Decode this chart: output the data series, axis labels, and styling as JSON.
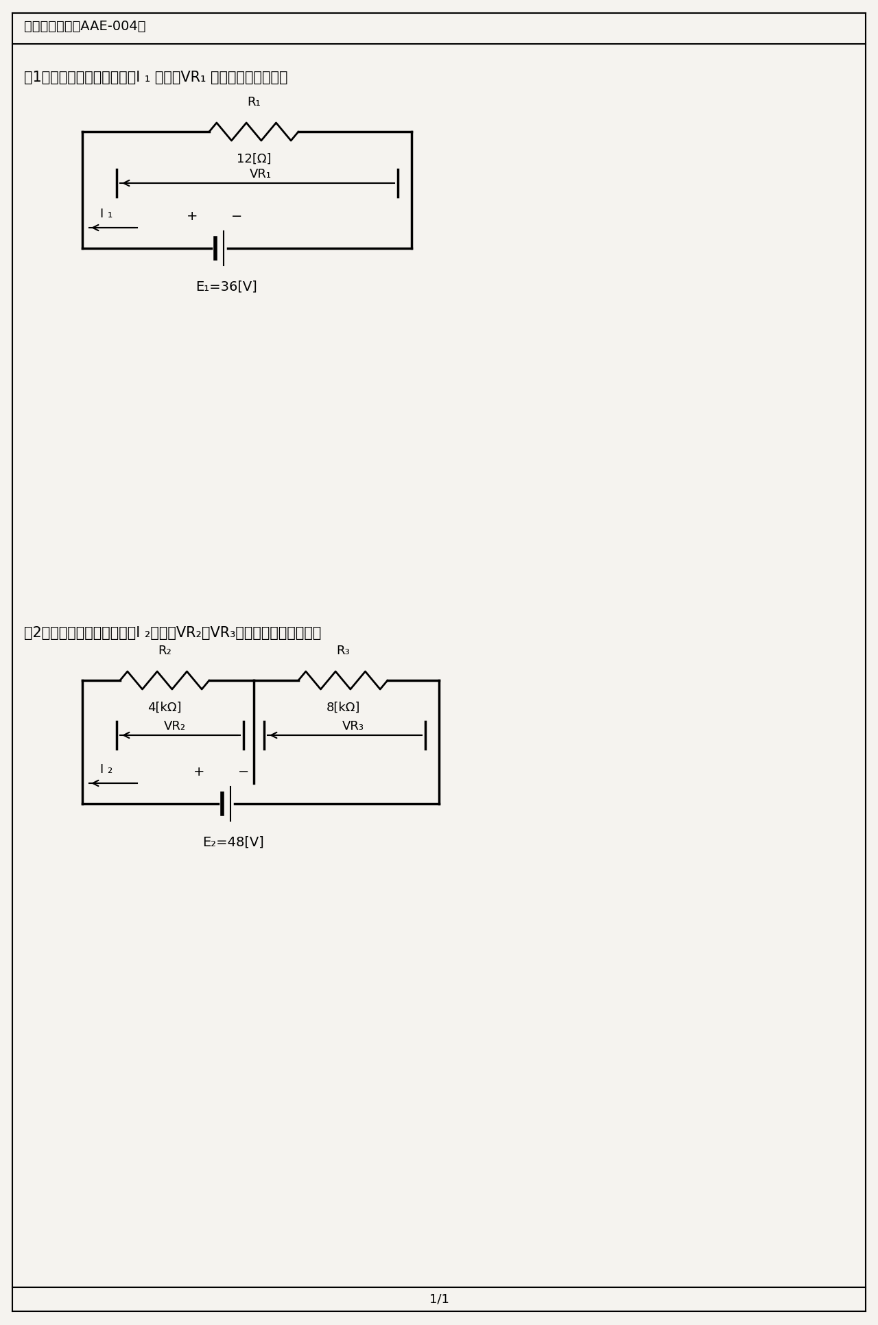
{
  "bg_color": "#f5f3ef",
  "title": "オームの法則（AAE-004）",
  "q1_text": "問1　下図の回路に于いて、I ₁ 及び、VR₁ の値を求めなさい。",
  "q2_text": "問2　下図の回路に于いて、I ₂、及びVR₂、VR₃　の値を求めなさい。",
  "page": "1/1",
  "circuit1": {
    "R1_label": "R₁",
    "R1_value": "12[Ω]",
    "VR1_label": "VR₁",
    "I1_label": "I ₁",
    "E1_label": "E₁=36[V]"
  },
  "circuit2": {
    "R2_label": "R₂",
    "R2_value": "4[kΩ]",
    "R3_label": "R₃",
    "R3_value": "8[kΩ]",
    "VR2_label": "VR₂",
    "VR3_label": "VR₃",
    "I2_label": "I ₂",
    "E2_label": "E₂=48[V]"
  }
}
